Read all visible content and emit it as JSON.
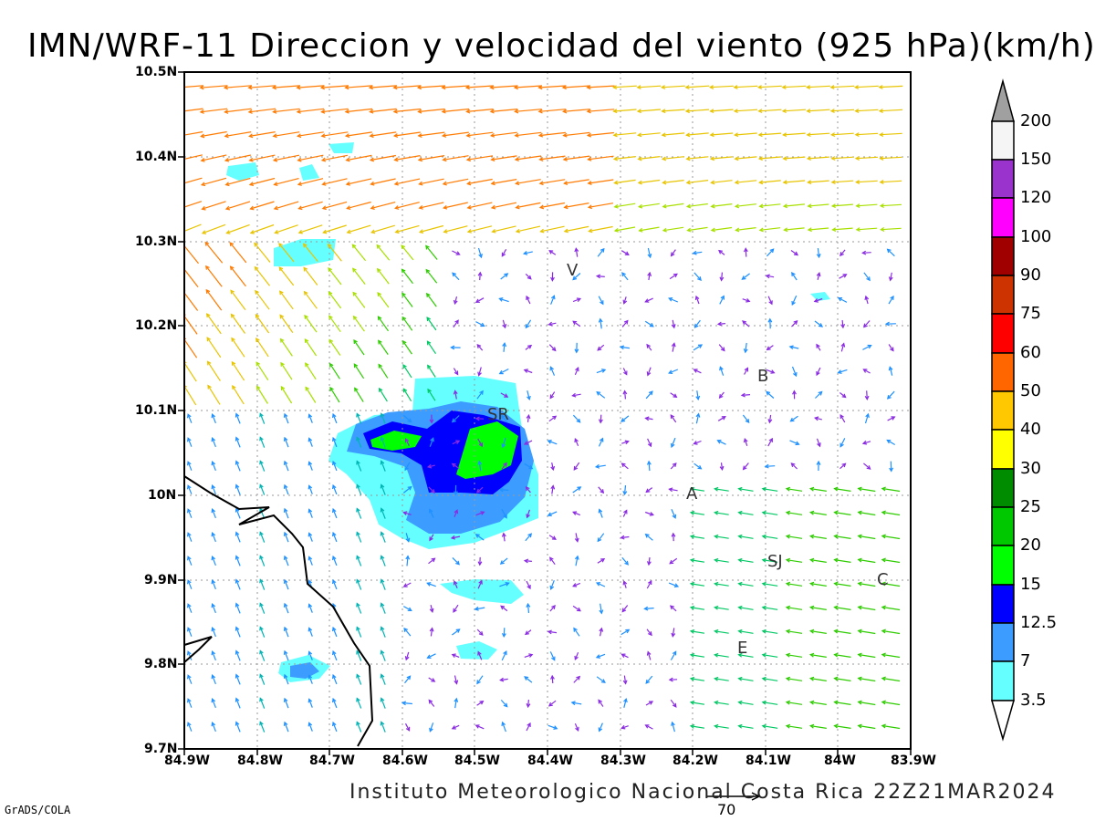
{
  "title": "IMN/WRF-11 Direccion y velocidad del viento (925 hPa)(km/h)",
  "credit": "Instituto Meteorologico Nacional Costa Rica 22Z21MAR2024",
  "software": "GrADS/COLA",
  "reference_vector": "70",
  "axes": {
    "lon_labels": [
      "84.9W",
      "84.8W",
      "84.7W",
      "84.6W",
      "84.5W",
      "84.4W",
      "84.3W",
      "84.2W",
      "84.1W",
      "84W",
      "83.9W"
    ],
    "lat_labels": [
      "10.5N",
      "10.4N",
      "10.3N",
      "10.2N",
      "10.1N",
      "10N",
      "9.9N",
      "9.8N",
      "9.7N"
    ]
  },
  "colorbar": {
    "labels": [
      "200",
      "150",
      "120",
      "100",
      "90",
      "75",
      "60",
      "50",
      "40",
      "30",
      "25",
      "20",
      "15",
      "12.5",
      "7",
      "3.5"
    ],
    "colors": [
      "#f5f5f5",
      "#9a32cd",
      "#ff00ff",
      "#a00000",
      "#cd3300",
      "#ff0000",
      "#ff6600",
      "#ffc800",
      "#ffff00",
      "#008c00",
      "#00c800",
      "#00ff00",
      "#0000ff",
      "#3c9cff",
      "#66ffff"
    ],
    "top_triangle_color": "#a0a0a0",
    "bottom_triangle_color": "#ffffff"
  },
  "cities": [
    {
      "name": "V"
    },
    {
      "name": "B"
    },
    {
      "name": "SR"
    },
    {
      "name": "A"
    },
    {
      "name": "SJ"
    },
    {
      "name": "C"
    },
    {
      "name": "E"
    }
  ]
}
